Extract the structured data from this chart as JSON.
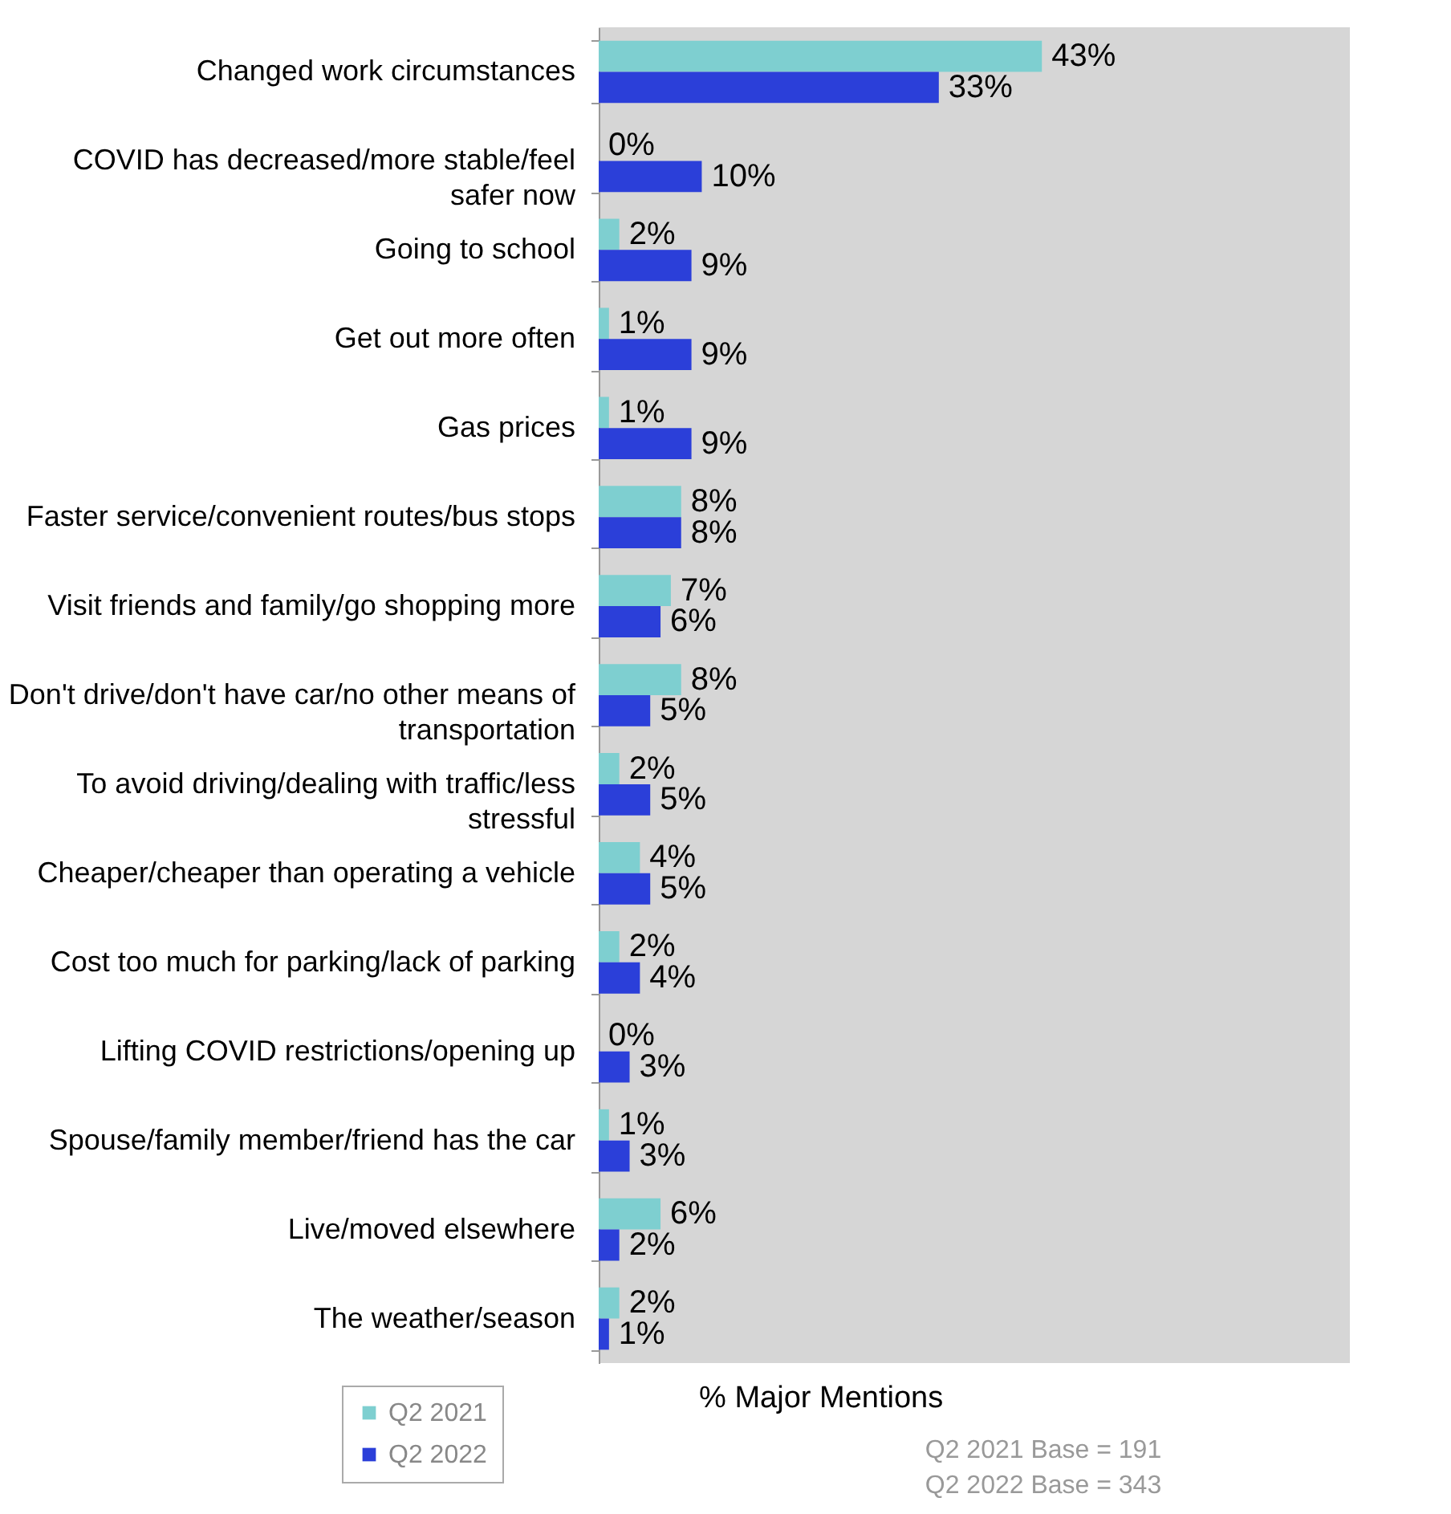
{
  "chart_data": {
    "type": "bar",
    "orientation": "horizontal",
    "xlabel": "% Major Mentions",
    "categories": [
      "Changed work circumstances",
      "COVID has decreased/more stable/feel safer now",
      "Going to school",
      "Get out more often",
      "Gas prices",
      "Faster service/convenient routes/bus stops",
      "Visit friends and family/go shopping more",
      "Don't drive/don't have car/no other means of transportation",
      "To avoid driving/dealing with traffic/less stressful",
      "Cheaper/cheaper than operating a vehicle",
      "Cost too much for parking/lack of parking",
      "Lifting COVID restrictions/opening up",
      "Spouse/family member/friend has the car",
      "Live/moved elsewhere",
      "The weather/season"
    ],
    "series": [
      {
        "name": "Q2 2021",
        "color": "#7ecfd0",
        "values": [
          43,
          0,
          2,
          1,
          1,
          8,
          7,
          8,
          2,
          4,
          2,
          0,
          1,
          6,
          2
        ],
        "value_labels": [
          "43%",
          "0%",
          "2%",
          "1%",
          "1%",
          "8%",
          "7%",
          "8%",
          "2%",
          "4%",
          "2%",
          "0%",
          "1%",
          "6%",
          "2%"
        ]
      },
      {
        "name": "Q2 2022",
        "color": "#2b3fd9",
        "values": [
          33,
          10,
          9,
          9,
          9,
          8,
          6,
          5,
          5,
          5,
          4,
          3,
          3,
          2,
          1
        ],
        "value_labels": [
          "33%",
          "10%",
          "9%",
          "9%",
          "9%",
          "8%",
          "6%",
          "5%",
          "5%",
          "5%",
          "4%",
          "3%",
          "3%",
          "2%",
          "1%"
        ]
      }
    ],
    "legend": "bottom left",
    "annotations": [
      "Q2 2021 Base = 191",
      "Q2 2022 Base = 343"
    ]
  }
}
